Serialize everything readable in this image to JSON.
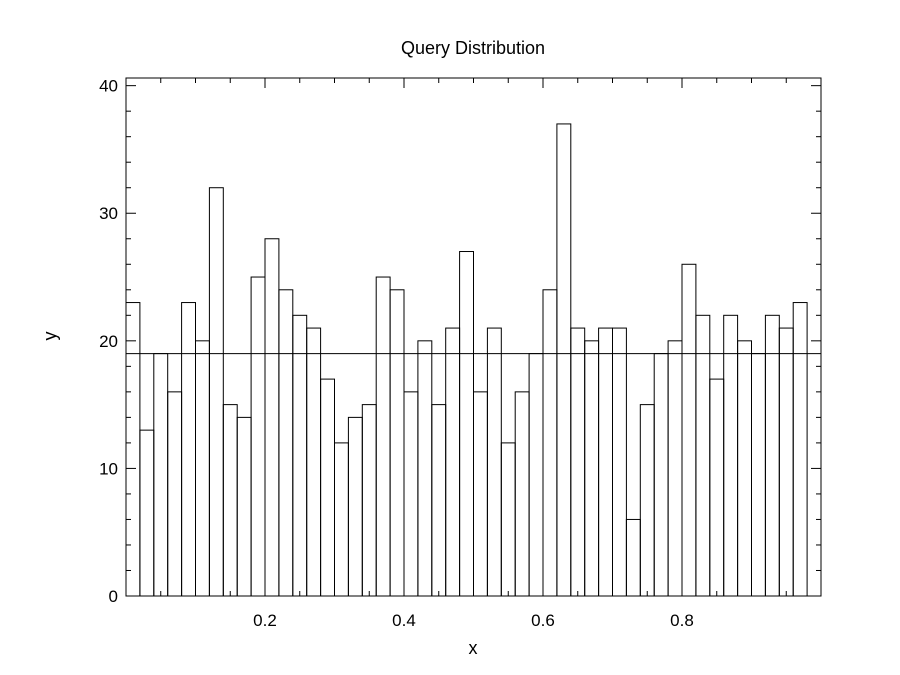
{
  "chart_data": {
    "type": "bar",
    "title": "Query Distribution",
    "xlabel": "x",
    "ylabel": "y",
    "xlim": [
      0.0,
      1.0
    ],
    "ylim": [
      0,
      40.6
    ],
    "bin_width": 0.02,
    "bin_starts": [
      0.0,
      0.02,
      0.04,
      0.06,
      0.08,
      0.1,
      0.12,
      0.14,
      0.16,
      0.18,
      0.2,
      0.22,
      0.24,
      0.26,
      0.28,
      0.3,
      0.32,
      0.34,
      0.36,
      0.38,
      0.4,
      0.42,
      0.44,
      0.46,
      0.48,
      0.5,
      0.52,
      0.54,
      0.56,
      0.58,
      0.6,
      0.62,
      0.64,
      0.66,
      0.68,
      0.7,
      0.72,
      0.74,
      0.76,
      0.78,
      0.8,
      0.82,
      0.84,
      0.86,
      0.88,
      0.9,
      0.92,
      0.94,
      0.96
    ],
    "values": [
      23,
      13,
      19,
      16,
      23,
      20,
      32,
      15,
      14,
      25,
      28,
      24,
      22,
      21,
      17,
      12,
      14,
      15,
      25,
      24,
      16,
      20,
      15,
      21,
      27,
      16,
      21,
      12,
      16,
      19,
      24,
      37,
      21,
      20,
      21,
      21,
      6,
      15,
      19,
      20,
      26,
      22,
      17,
      22,
      20,
      19,
      22,
      21,
      23
    ],
    "reference_line": 19,
    "x_ticks": [
      0.2,
      0.4,
      0.6,
      0.8
    ],
    "x_tick_labels": [
      "0.2",
      "0.4",
      "0.6",
      "0.8"
    ],
    "y_ticks": [
      0,
      10,
      20,
      30,
      40
    ],
    "y_tick_labels": [
      "0",
      "10",
      "20",
      "30",
      "40"
    ],
    "grid": false
  }
}
